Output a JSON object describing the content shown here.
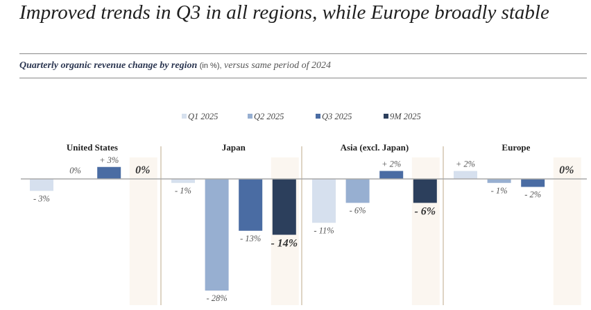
{
  "title": "Improved trends in Q3 in all regions, while Europe broadly stable",
  "subtitle": {
    "bold": "Quarterly organic revenue change by region",
    "unit": "(in %),",
    "note": "versus same period of 2024"
  },
  "chart_data": {
    "type": "bar",
    "title": "Quarterly organic revenue change by region",
    "ylabel": "",
    "grid": false,
    "legend_position": "top",
    "series_colors": [
      "#d6e0ee",
      "#97afd1",
      "#4a6ca3",
      "#2c3f5c"
    ],
    "highlight_color": "#fbf6f0",
    "separator_color": "#c9b79c",
    "categories": [
      "United States",
      "Japan",
      "Asia (excl. Japan)",
      "Europe"
    ],
    "series": [
      {
        "name": "Q1 2025",
        "values": [
          -3,
          -1,
          -11,
          2
        ],
        "labels": [
          "- 3%",
          "- 1%",
          "- 11%",
          "+ 2%"
        ]
      },
      {
        "name": "Q2 2025",
        "values": [
          0,
          -28,
          -6,
          -1
        ],
        "labels": [
          "0%",
          "- 28%",
          "- 6%",
          "- 1%"
        ]
      },
      {
        "name": "Q3 2025",
        "values": [
          3,
          -13,
          2,
          -2
        ],
        "labels": [
          "+ 3%",
          "- 13%",
          "+ 2%",
          "- 2%"
        ]
      },
      {
        "name": "9M 2025",
        "values": [
          0,
          -14,
          -6,
          0
        ],
        "labels": [
          "0%",
          "- 14%",
          "- 6%",
          "0%"
        ]
      }
    ]
  }
}
